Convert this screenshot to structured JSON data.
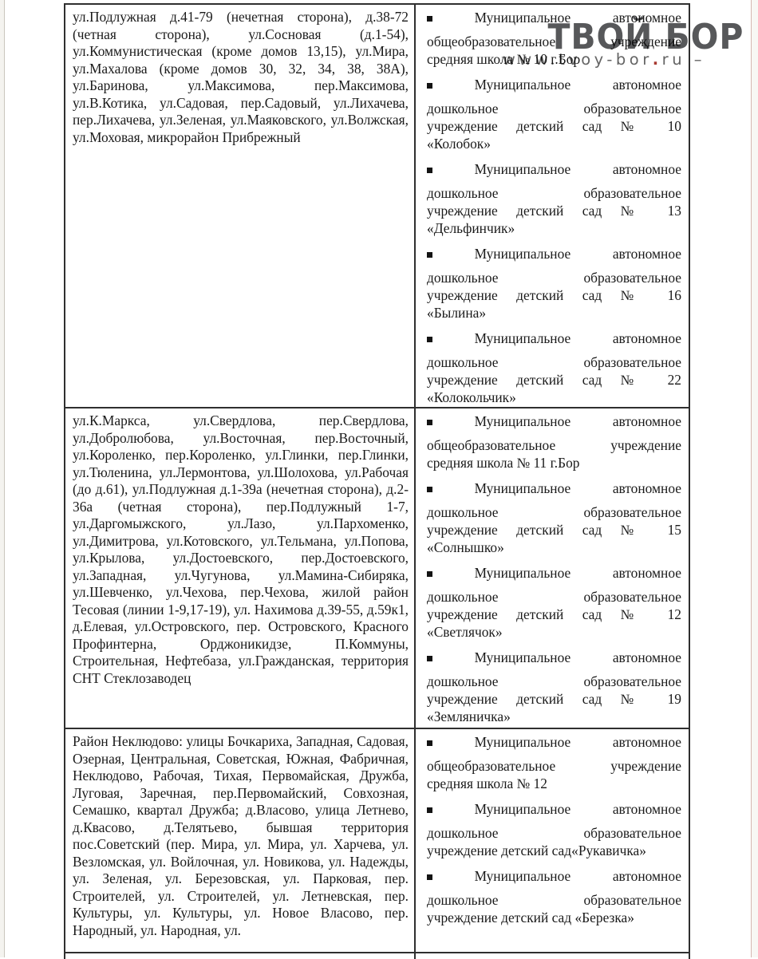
{
  "watermark": {
    "title": "ТВОЙ БОР",
    "url_pre": "www.tvoy-bor",
    "url_dot": ".",
    "url_post": "ru –"
  },
  "colors": {
    "watermark_gray": "#57585a",
    "url_dot_red": "#a83a31",
    "border_dark": "#2f2f2f",
    "text": "#1a1a1a"
  },
  "icons": {
    "bullet": "square-bullet-icon"
  },
  "table": {
    "rows": [
      {
        "left": "ул.Подлужная д.41-79 (нечетная сторона), д.38-72 (четная сторона), ул.Сосновая (д.1-54), ул.Коммунистическая (кроме домов 13,15), ул.Мира, ул.Махалова (кроме домов 30, 32, 34, 38, 38А), ул.Баринова, ул.Максимова, пер.Максимова, ул.В.Котика, ул.Садовая, пер.Садовый, ул.Лихачева, пер.Лихачева, ул.Зеленая, ул.Маяковского, ул.Волжская, ул.Моховая, микрорайон Прибрежный",
        "right": [
          {
            "lead_1": "Муниципальное",
            "lead_2": "автономное",
            "body_1": "общеобразовательное учреждение",
            "last": "средняя школа № 10 г.Бор"
          },
          {
            "lead_1": "Муниципальное",
            "lead_2": "автономное",
            "body_1": "дошкольное образовательное",
            "body_2": "учреждение детский сад № 10",
            "last": "«Колобок»"
          },
          {
            "lead_1": "Муниципальное",
            "lead_2": "автономное",
            "body_1": "дошкольное образовательное",
            "body_2": "учреждение детский сад № 13",
            "last": "«Дельфинчик»"
          },
          {
            "lead_1": "Муниципальное",
            "lead_2": "автономное",
            "body_1": "дошкольное образовательное",
            "body_2": "учреждение детский сад № 16",
            "last": "«Былина»"
          },
          {
            "lead_1": "Муниципальное",
            "lead_2": "автономное",
            "body_1": "дошкольное образовательное",
            "body_2": "учреждение детский сад № 22",
            "last": "«Колокольчик»"
          }
        ]
      },
      {
        "left": "ул.К.Маркса, ул.Свердлова, пер.Свердлова, ул.Добролюбова, ул.Восточная, пер.Восточный, ул.Короленко, пер.Короленко, ул.Глинки, пер.Глинки, ул.Тюленина, ул.Лермонтова, ул.Шолохова, ул.Рабочая (до д.61), ул.Подлужная д.1-39а (нечетная сторона), д.2-36а (четная сторона), пер.Подлужный 1-7, ул.Даргомыжского, ул.Лазо, ул.Пархоменко, ул.Димитрова, ул.Котовского, ул.Тельмана, ул.Попова, ул.Крылова, ул.Достоевского, пер.Достоевского, ул.Западная, ул.Чугунова, ул.Мамина-Сибиряка, ул.Шевченко, ул.Чехова, пер.Чехова, жилой район Тесовая (линии 1-9,17-19), ул. Нахимова д.39-55, д.59к1, д.Елевая, ул.Островского, пер. Островского, Красного Профинтерна, Орджоникидзе, П.Коммуны, Строительная, Нефтебаза, ул.Гражданская, территория СНТ Стеклозаводец",
        "right": [
          {
            "lead_1": "Муниципальное",
            "lead_2": "автономное",
            "body_1": "общеобразовательное учреждение",
            "last": "средняя школа № 11 г.Бор"
          },
          {
            "lead_1": "Муниципальное",
            "lead_2": "автономное",
            "body_1": "дошкольное образовательное",
            "body_2": "учреждение детский сад № 15",
            "last": "«Солнышко»"
          },
          {
            "lead_1": "Муниципальное",
            "lead_2": "автономное",
            "body_1": "дошкольное образовательное",
            "body_2": "учреждение детский сад № 12",
            "last": "«Светлячок»"
          },
          {
            "lead_1": "Муниципальное",
            "lead_2": "автономное",
            "body_1": "дошкольное образовательное",
            "body_2": "учреждение детский сад № 19",
            "last": "«Земляничка»"
          }
        ]
      },
      {
        "left": "Район Неклюдово: улицы Бочкариха, Западная, Садовая, Озерная, Центральная, Советская, Южная, Фабричная, Неклюдово, Рабочая, Тихая, Первомайская, Дружба, Луговая, Заречная, пер.Первомайский, Совхозная, Семашко, квартал Дружба; д.Власово, улица Летнево, д.Квасово, д.Телятьево, бывшая территория пос.Советский (пер. Мира, ул. Мира, ул. Харчева, ул. Везломская, ул. Войлочная, ул. Новикова, ул. Надежды, ул. Зеленая, ул. Березовская, ул. Парковая, пер. Строителей, ул. Строителей, ул. Летневская, пер. Культуры, ул. Культуры, ул. Новое Власово, пер. Народный, ул. Народная, ул.",
        "right": [
          {
            "lead_1": "Муниципальное",
            "lead_2": "автономное",
            "body_1": "общеобразовательное учреждение",
            "last": "средняя школа № 12"
          },
          {
            "lead_1": "Муниципальное",
            "lead_2": "автономное",
            "body_1": "дошкольное образовательное",
            "last": "учреждение детский сад«Рукавичка»"
          },
          {
            "lead_1": "Муниципальное",
            "lead_2": "автономное",
            "body_1": "дошкольное образовательное",
            "last": "учреждение детский сад  «Березка»"
          }
        ]
      }
    ]
  }
}
